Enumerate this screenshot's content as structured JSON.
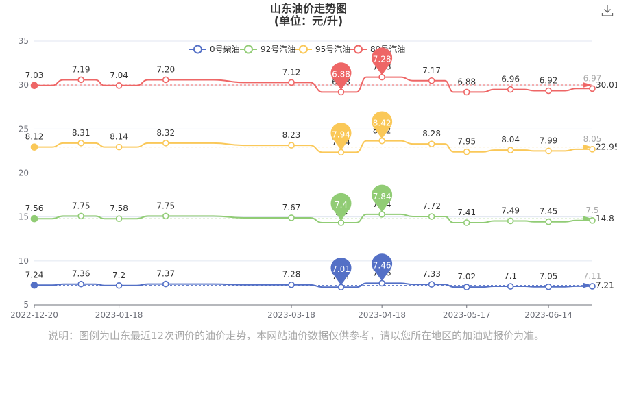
{
  "title": {
    "line1": "山东油价走势图",
    "line2": "(单位：元/升)"
  },
  "toolbar": {
    "download_icon": "download-icon"
  },
  "note": "说明：图例为山东最近12次调价的油价走势，本网站油价数据仅供参考，请以您所在地区的加油站报价为准。",
  "colors": {
    "diesel0": "#5470c6",
    "gas92": "#91cc75",
    "gas95": "#fac858",
    "gas89": "#ee6666"
  },
  "chart_data": {
    "type": "line",
    "y_ticks": [
      "5",
      "10",
      "15",
      "20",
      "25",
      "30",
      "35"
    ],
    "ylim": [
      5,
      35
    ],
    "x_ticks": [
      "2022-12-20",
      "2023-01-18",
      "2023-03-18",
      "2023-04-18",
      "2023-05-17",
      "2023-06-14"
    ],
    "x": [
      "2022-12-20",
      "2023-01-05",
      "2023-01-18",
      "2023-02-03",
      "2023-03-18",
      "2023-04-04",
      "2023-04-18",
      "2023-05-05",
      "2023-05-17",
      "2023-06-01",
      "2023-06-14",
      "2023-06-29"
    ],
    "series": [
      {
        "name": "0号柴油",
        "color": "#5470c6",
        "labels": [
          "7.24",
          "7.36",
          "7.2",
          "7.37",
          "7.28",
          "7.01",
          "7.46",
          "7.33",
          "7.02",
          "7.1",
          "7.05",
          "7.11"
        ],
        "values": [
          7.24,
          7.36,
          7.2,
          7.37,
          7.28,
          7.01,
          7.46,
          7.33,
          7.02,
          7.1,
          7.05,
          7.11
        ],
        "plotted": [
          7.24,
          7.36,
          7.2,
          7.37,
          7.28,
          7.01,
          7.46,
          7.33,
          7.02,
          7.1,
          7.05,
          7.11
        ],
        "max_label": "7.46",
        "min_label": "7.01",
        "avg_label": "7.21",
        "avg": 7.21
      },
      {
        "name": "92号汽油",
        "color": "#91cc75",
        "labels": [
          "7.56",
          "7.75",
          "7.58",
          "7.75",
          "7.67",
          "7.4",
          "7.84",
          "7.72",
          "7.41",
          "7.49",
          "7.45",
          "7.5"
        ],
        "values": [
          7.56,
          7.75,
          7.58,
          7.75,
          7.67,
          7.4,
          7.84,
          7.72,
          7.41,
          7.49,
          7.45,
          7.5
        ],
        "plotted": [
          14.8,
          15.1,
          14.8,
          15.1,
          14.9,
          14.35,
          15.3,
          15.05,
          14.35,
          14.55,
          14.45,
          14.6
        ],
        "max_label": "7.84",
        "min_label": "7.4",
        "avg_label": "14.8",
        "avg": 14.8
      },
      {
        "name": "95号汽油",
        "color": "#fac858",
        "labels": [
          "8.12",
          "8.31",
          "8.14",
          "8.32",
          "8.23",
          "7.94",
          "8.42",
          "8.28",
          "7.95",
          "8.04",
          "7.99",
          "8.05"
        ],
        "values": [
          8.12,
          8.31,
          8.14,
          8.32,
          8.23,
          7.94,
          8.42,
          8.28,
          7.95,
          8.04,
          7.99,
          8.05
        ],
        "plotted": [
          22.95,
          23.4,
          22.95,
          23.4,
          23.15,
          22.35,
          23.65,
          23.3,
          22.4,
          22.6,
          22.5,
          22.7
        ],
        "max_label": "8.42",
        "min_label": "7.94",
        "avg_label": "22.95",
        "avg": 22.95
      },
      {
        "name": "89号汽油",
        "color": "#ee6666",
        "labels": [
          "7.03",
          "7.19",
          "7.04",
          "7.20",
          "7.12",
          "6.88",
          "7.28",
          "7.17",
          "6.88",
          "6.96",
          "6.92",
          "6.97"
        ],
        "values": [
          7.03,
          7.19,
          7.04,
          7.2,
          7.12,
          6.88,
          7.28,
          7.17,
          6.88,
          6.96,
          6.92,
          6.97
        ],
        "plotted": [
          29.95,
          30.6,
          29.95,
          30.6,
          30.3,
          29.2,
          30.9,
          30.5,
          29.2,
          29.5,
          29.35,
          29.6
        ],
        "max_label": "7.28",
        "min_label": "6.88",
        "avg_label": "30.01",
        "avg": 30.01
      }
    ]
  }
}
